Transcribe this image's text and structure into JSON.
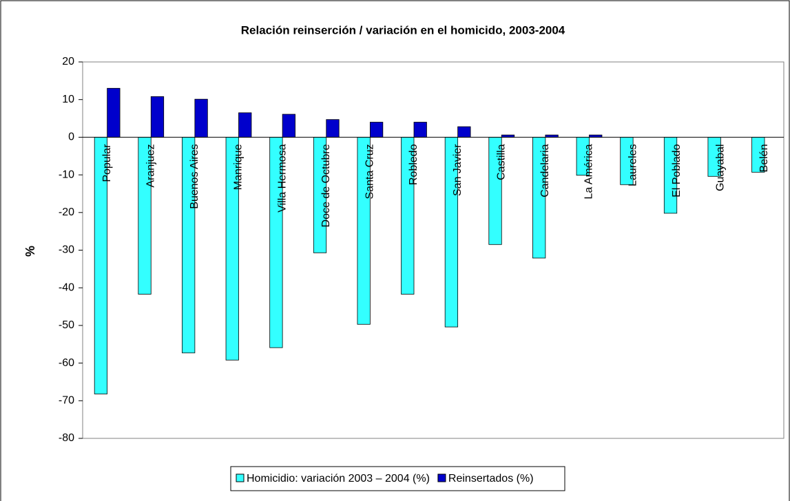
{
  "chart_data": {
    "type": "bar",
    "title": "Relación reinserción / variación en el homicido, 2003-2004",
    "y_label": "%",
    "categories": [
      "Popular",
      "Aranjuez",
      "Buenos Aires",
      "Manrique",
      "Villa Hermosa",
      "Doce de Octubre",
      "Santa Cruz",
      "Robledo",
      "San Javier",
      "Castilla",
      "Candelaria",
      "La América",
      "Laureles",
      "El Poblado",
      "Guayabal",
      "Belén"
    ],
    "series": [
      {
        "name": "Homicidio: variación 2003 – 2004 (%)",
        "color": "#33ffff",
        "values": [
          -68.2,
          -41.7,
          -57.3,
          -59.2,
          -55.9,
          -30.7,
          -49.7,
          -41.7,
          -50.4,
          -28.5,
          -32.1,
          -10.1,
          -12.6,
          -20.2,
          -10.4,
          -9.3
        ]
      },
      {
        "name": "Reinsertados (%)",
        "color": "#0000cc",
        "values": [
          13.0,
          10.8,
          10.1,
          6.5,
          6.1,
          4.7,
          4.0,
          4.0,
          2.8,
          0.6,
          0.6,
          0.6,
          0,
          0,
          0,
          0
        ]
      }
    ],
    "ylim": [
      -80,
      20
    ],
    "yticks": [
      -80,
      -70,
      -60,
      -50,
      -40,
      -30,
      -20,
      -10,
      0,
      10,
      20
    ],
    "legend": "bottom"
  }
}
